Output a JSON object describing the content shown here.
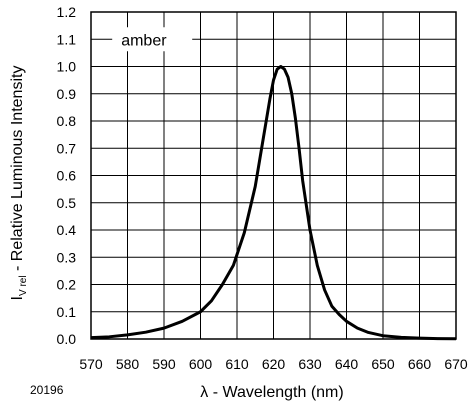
{
  "chart_data": {
    "type": "line",
    "xlabel": "λ - Wavelength (nm)",
    "ylabel_main": "I",
    "ylabel_sub": "V rel",
    "ylabel_rest": " - Relative Luminous Intensity",
    "figure_id": "20196",
    "xlim": [
      570,
      670
    ],
    "ylim": [
      0,
      1.2
    ],
    "x_ticks": [
      "570",
      "580",
      "590",
      "600",
      "610",
      "620",
      "630",
      "640",
      "650",
      "660",
      "670"
    ],
    "y_ticks": [
      "0.0",
      "0.1",
      "0.2",
      "0.3",
      "0.4",
      "0.5",
      "0.6",
      "0.7",
      "0.8",
      "0.9",
      "1.0",
      "1.1",
      "1.2"
    ],
    "grid": true,
    "legend_position": "top-left",
    "line_color": "#000000",
    "series": [
      {
        "name": "amber",
        "x": [
          570,
          575,
          580,
          585,
          590,
          595,
          600,
          603,
          606,
          609,
          612,
          615,
          617,
          619,
          620,
          621,
          622,
          623,
          624,
          625,
          626,
          627,
          628,
          630,
          632,
          634,
          636,
          638,
          640,
          643,
          646,
          650,
          655,
          660,
          665,
          670
        ],
        "y": [
          0.005,
          0.008,
          0.015,
          0.025,
          0.04,
          0.065,
          0.1,
          0.14,
          0.2,
          0.27,
          0.39,
          0.56,
          0.72,
          0.88,
          0.95,
          0.99,
          1.0,
          0.99,
          0.96,
          0.9,
          0.81,
          0.7,
          0.58,
          0.4,
          0.27,
          0.18,
          0.12,
          0.09,
          0.065,
          0.04,
          0.024,
          0.012,
          0.006,
          0.003,
          0.0015,
          0.001
        ]
      }
    ]
  }
}
